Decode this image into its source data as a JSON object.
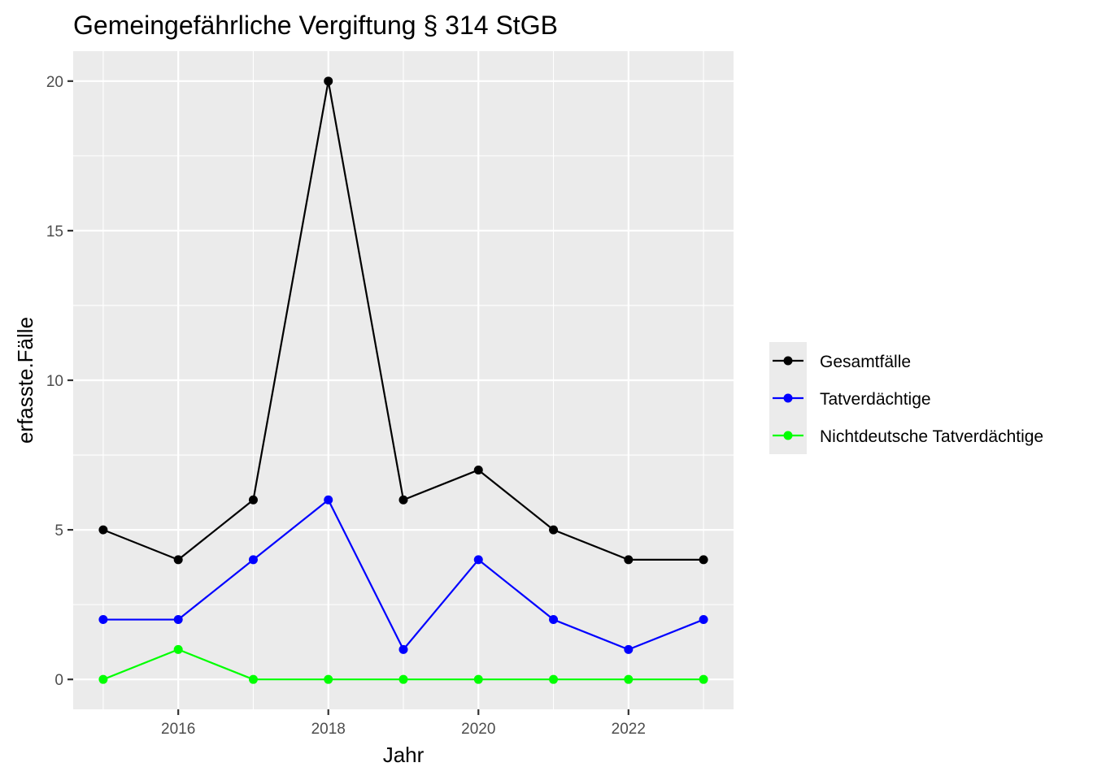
{
  "chart_data": {
    "type": "line",
    "title": "Gemeingefährliche Vergiftung § 314 StGB",
    "xlabel": "Jahr",
    "ylabel": "erfasste.Fälle",
    "x": [
      2015,
      2016,
      2017,
      2018,
      2019,
      2020,
      2021,
      2022,
      2023
    ],
    "xlim": [
      2014.6,
      2023.4
    ],
    "ylim": [
      -1,
      21
    ],
    "x_ticks": [
      2016,
      2018,
      2020,
      2022
    ],
    "y_ticks": [
      0,
      5,
      10,
      15,
      20
    ],
    "grid": true,
    "legend_position": "right",
    "series": [
      {
        "name": "Gesamtfälle",
        "color": "#000000",
        "values": [
          5,
          4,
          6,
          20,
          6,
          7,
          5,
          4,
          4
        ]
      },
      {
        "name": "Tatverdächtige",
        "color": "#0000ff",
        "values": [
          2,
          2,
          4,
          6,
          1,
          4,
          2,
          1,
          2
        ]
      },
      {
        "name": "Nichtdeutsche Tatverdächtige",
        "color": "#00ff00",
        "values": [
          0,
          1,
          0,
          0,
          0,
          0,
          0,
          0,
          0
        ]
      }
    ]
  }
}
